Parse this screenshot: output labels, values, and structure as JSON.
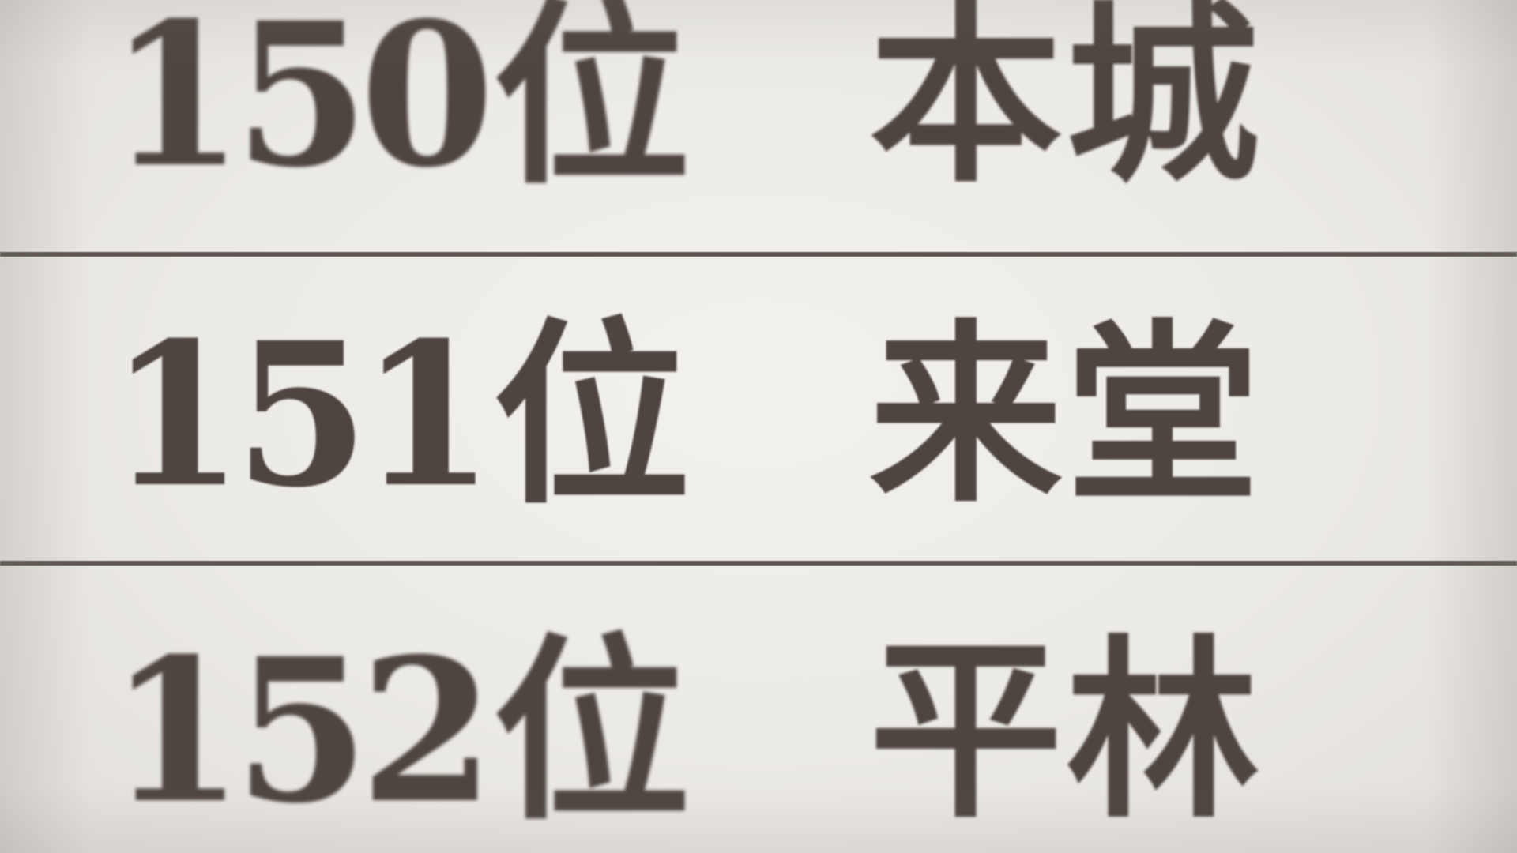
{
  "rows": [
    {
      "rank": "150",
      "suffix": "位",
      "name": "本城"
    },
    {
      "rank": "151",
      "suffix": "位",
      "name": "来堂"
    },
    {
      "rank": "152",
      "suffix": "位",
      "name": "平林"
    }
  ],
  "colors": {
    "paper": "#edebe7",
    "ink": "#4f4540",
    "rule": "#5e5550"
  }
}
